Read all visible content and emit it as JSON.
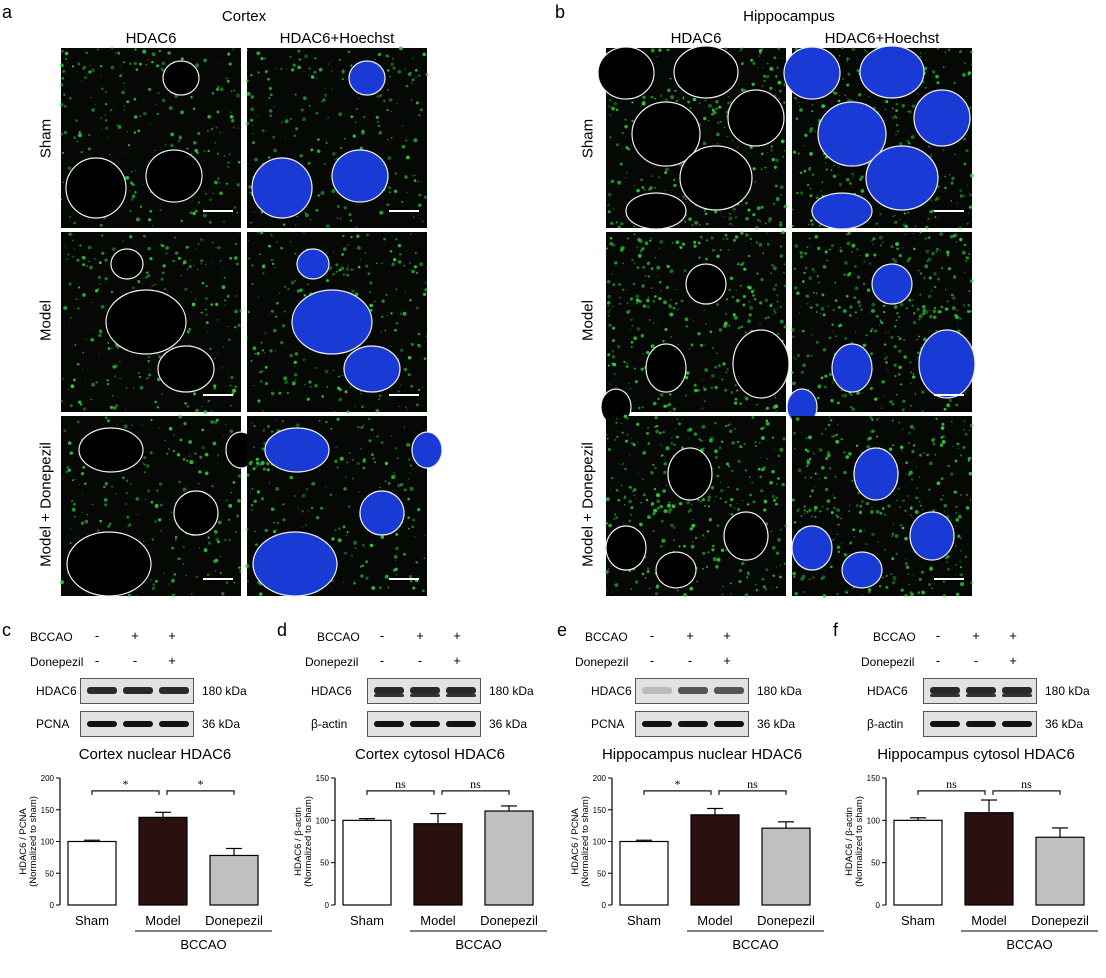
{
  "panels": {
    "a": {
      "letter": "a",
      "region": "Cortex",
      "cols": [
        "HDAC6",
        "HDAC6+Hoechst"
      ],
      "rows": [
        "Sham",
        "Model",
        "Model + Donepezil"
      ]
    },
    "b": {
      "letter": "b",
      "region": "Hippocampus",
      "cols": [
        "HDAC6",
        "HDAC6+Hoechst"
      ],
      "rows": [
        "Sham",
        "Model",
        "Model + Donepezil"
      ]
    }
  },
  "blots": [
    {
      "letter": "c",
      "bccao": "BCCAO",
      "donepezil": "Donepezil",
      "bccao_signs": [
        "-",
        "+",
        "+"
      ],
      "donepezil_signs": [
        "-",
        "-",
        "+"
      ],
      "bands": [
        {
          "name": "HDAC6",
          "kda": "180 kDa"
        },
        {
          "name": "PCNA",
          "kda": "36 kDa"
        }
      ]
    },
    {
      "letter": "d",
      "bccao": "BCCAO",
      "donepezil": "Donepezil",
      "bccao_signs": [
        "-",
        "+",
        "+"
      ],
      "donepezil_signs": [
        "-",
        "-",
        "+"
      ],
      "bands": [
        {
          "name": "HDAC6",
          "kda": "180 kDa"
        },
        {
          "name": "β-actin",
          "kda": "36 kDa"
        }
      ]
    },
    {
      "letter": "e",
      "bccao": "BCCAO",
      "donepezil": "Donepezil",
      "bccao_signs": [
        "-",
        "+",
        "+"
      ],
      "donepezil_signs": [
        "-",
        "-",
        "+"
      ],
      "bands": [
        {
          "name": "HDAC6",
          "kda": "180 kDa"
        },
        {
          "name": "PCNA",
          "kda": "36 kDa"
        }
      ]
    },
    {
      "letter": "f",
      "bccao": "BCCAO",
      "donepezil": "Donepezil",
      "bccao_signs": [
        "-",
        "+",
        "+"
      ],
      "donepezil_signs": [
        "-",
        "-",
        "+"
      ],
      "bands": [
        {
          "name": "HDAC6",
          "kda": "180 kDa"
        },
        {
          "name": "β-actin",
          "kda": "36 kDa"
        }
      ]
    }
  ],
  "colors": {
    "sham": "#ffffff",
    "model": "#2b1010",
    "donepezil": "#c0c0c0",
    "nucleus": "#1a3ad6",
    "stain": "#2fd43a"
  },
  "chart_data": [
    {
      "type": "bar",
      "title": "Cortex nuclear HDAC6",
      "ylabel": "HDAC6 / PCNA",
      "ylabel2": "(Normalized to sham)",
      "categories": [
        "Sham",
        "Model",
        "Donepezil"
      ],
      "values": [
        100,
        138,
        78
      ],
      "errors": [
        2,
        8,
        11
      ],
      "ylim": [
        0,
        200
      ],
      "yticks": [
        "0",
        "50",
        "100",
        "150",
        "200"
      ],
      "group_label": "BCCAO",
      "sig": [
        "*",
        "*"
      ]
    },
    {
      "type": "bar",
      "title": "Cortex cytosol HDAC6",
      "ylabel": "HDAC6 / β-actin",
      "ylabel2": "(Normalized to sham)",
      "categories": [
        "Sham",
        "Model",
        "Donepezil"
      ],
      "values": [
        100,
        96,
        111
      ],
      "errors": [
        2,
        12,
        6
      ],
      "ylim": [
        0,
        150
      ],
      "yticks": [
        "0",
        "50",
        "100",
        "150"
      ],
      "group_label": "BCCAO",
      "sig": [
        "ns",
        "ns"
      ]
    },
    {
      "type": "bar",
      "title": "Hippocampus nuclear HDAC6",
      "ylabel": "HDAC6 / PCNA",
      "ylabel2": "(Normalized to sham)",
      "categories": [
        "Sham",
        "Model",
        "Donepezil"
      ],
      "values": [
        100,
        142,
        121
      ],
      "errors": [
        2,
        10,
        10
      ],
      "ylim": [
        0,
        200
      ],
      "yticks": [
        "0",
        "50",
        "100",
        "150",
        "200"
      ],
      "group_label": "BCCAO",
      "sig": [
        "*",
        "ns"
      ]
    },
    {
      "type": "bar",
      "title": "Hippocampus cytosol HDAC6",
      "ylabel": "HDAC6 / β-actin",
      "ylabel2": "(Normalized to sham)",
      "categories": [
        "Sham",
        "Model",
        "Donepezil"
      ],
      "values": [
        100,
        109,
        80
      ],
      "errors": [
        3,
        15,
        11
      ],
      "ylim": [
        0,
        150
      ],
      "yticks": [
        "0",
        "50",
        "100",
        "150"
      ],
      "group_label": "BCCAO",
      "sig": [
        "ns",
        "ns"
      ]
    }
  ]
}
